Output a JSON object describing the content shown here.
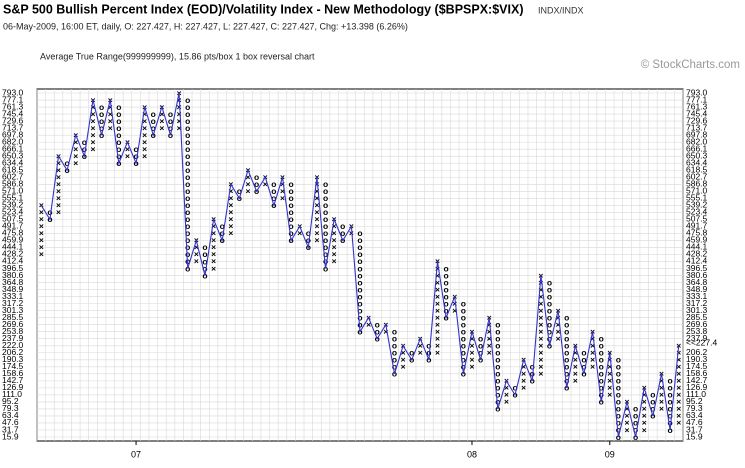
{
  "chart_data": {
    "type": "point_and_figure",
    "title": "S&P 500 Bullish Percent Index (EOD)/Volatility Index - New Methodology ($BPSPX:$VIX)",
    "exchange": "INDX/INDX",
    "subtitle": "06-May-2009, 16:00 ET, daily, O: 227.427, H: 227.427, L: 227.427, C: 227.427, Chg: +13.398 (6.26%)",
    "method": "Average True Range(999999999), 15.86 pts/box 1 box reversal chart",
    "watermark": "© StockCharts.com",
    "ylim": [
      15.9,
      793.0
    ],
    "yticks": [
      15.9,
      31.7,
      47.6,
      63.4,
      79.3,
      95.2,
      {
        "value": 111.0,
        "label": "111.0"
      },
      126.9,
      142.7,
      158.6,
      174.5,
      190.3,
      206.2,
      {
        "value": 222.0,
        "label": "222.0"
      },
      237.9,
      253.8,
      269.6,
      285.5,
      301.3,
      317.2,
      333.1,
      348.9,
      364.8,
      380.6,
      396.5,
      412.4,
      428.2,
      444.1,
      459.9,
      475.8,
      491.7,
      507.5,
      523.4,
      539.2,
      555.1,
      {
        "value": 571.0,
        "label": "571.0"
      },
      586.8,
      602.7,
      618.5,
      634.4,
      650.3,
      666.1,
      {
        "value": 682.0,
        "label": "682.0"
      },
      697.8,
      713.7,
      729.6,
      745.4,
      761.3,
      777.1,
      {
        "value": 793.0,
        "label": "793.0"
      }
    ],
    "grid": true,
    "trend_color": "#3333cc",
    "current": {
      "value": 227.4,
      "label": "<<227.4",
      "color": "#cc0000"
    },
    "x_labels": [
      {
        "label": "07",
        "column": 11
      },
      {
        "label": "08",
        "column": 50
      },
      {
        "label": "09",
        "column": 66
      }
    ],
    "columns": [
      {
        "type": "X",
        "low": 428.2,
        "high": 539.2
      },
      {
        "type": "O",
        "low": 507.5,
        "high": 523.4
      },
      {
        "type": "X",
        "low": 523.4,
        "high": 650.3
      },
      {
        "type": "O",
        "low": 618.5,
        "high": 634.4
      },
      {
        "type": "X",
        "low": 634.4,
        "high": 697.8
      },
      {
        "type": "O",
        "low": 650.3,
        "high": 682.0
      },
      {
        "type": "X",
        "low": 666.1,
        "high": 777.1
      },
      {
        "type": "O",
        "low": 697.8,
        "high": 761.3
      },
      {
        "type": "X",
        "low": 713.7,
        "high": 777.1
      },
      {
        "type": "O",
        "low": 634.4,
        "high": 761.3
      },
      {
        "type": "X",
        "low": 650.3,
        "high": 682.0
      },
      {
        "type": "O",
        "low": 634.4,
        "high": 666.1
      },
      {
        "type": "X",
        "low": 650.3,
        "high": 761.3
      },
      {
        "type": "O",
        "low": 697.8,
        "high": 745.4
      },
      {
        "type": "X",
        "low": 713.7,
        "high": 761.3
      },
      {
        "type": "O",
        "low": 697.8,
        "high": 745.4
      },
      {
        "type": "X",
        "low": 713.7,
        "high": 793.0
      },
      {
        "type": "O",
        "low": 396.5,
        "high": 777.1
      },
      {
        "type": "X",
        "low": 412.4,
        "high": 459.9
      },
      {
        "type": "O",
        "low": 380.6,
        "high": 444.1
      },
      {
        "type": "X",
        "low": 396.5,
        "high": 507.5
      },
      {
        "type": "O",
        "low": 459.9,
        "high": 491.7
      },
      {
        "type": "X",
        "low": 475.8,
        "high": 586.8
      },
      {
        "type": "O",
        "low": 555.1,
        "high": 571.0
      },
      {
        "type": "X",
        "low": 571.0,
        "high": 618.5
      },
      {
        "type": "O",
        "low": 571.0,
        "high": 602.7
      },
      {
        "type": "X",
        "low": 586.8,
        "high": 602.7
      },
      {
        "type": "O",
        "low": 539.2,
        "high": 586.8
      },
      {
        "type": "X",
        "low": 555.1,
        "high": 602.7
      },
      {
        "type": "O",
        "low": 459.9,
        "high": 586.8
      },
      {
        "type": "X",
        "low": 475.8,
        "high": 491.7
      },
      {
        "type": "O",
        "low": 444.1,
        "high": 475.8
      },
      {
        "type": "X",
        "low": 459.9,
        "high": 602.7
      },
      {
        "type": "O",
        "low": 396.5,
        "high": 586.8
      },
      {
        "type": "X",
        "low": 412.4,
        "high": 507.5
      },
      {
        "type": "O",
        "low": 459.9,
        "high": 491.7
      },
      {
        "type": "X",
        "low": 475.8,
        "high": 491.7
      },
      {
        "type": "O",
        "low": 253.8,
        "high": 475.8
      },
      {
        "type": "X",
        "low": 269.6,
        "high": 285.5
      },
      {
        "type": "O",
        "low": 237.9,
        "high": 269.6
      },
      {
        "type": "X",
        "low": 253.8,
        "high": 269.6
      },
      {
        "type": "O",
        "low": 158.6,
        "high": 253.8
      },
      {
        "type": "X",
        "low": 174.5,
        "high": 222.0
      },
      {
        "type": "O",
        "low": 190.3,
        "high": 206.2
      },
      {
        "type": "X",
        "low": 206.2,
        "high": 237.9
      },
      {
        "type": "O",
        "low": 190.3,
        "high": 222.0
      },
      {
        "type": "X",
        "low": 206.2,
        "high": 412.4
      },
      {
        "type": "O",
        "low": 285.5,
        "high": 396.5
      },
      {
        "type": "X",
        "low": 301.3,
        "high": 333.1
      },
      {
        "type": "O",
        "low": 158.6,
        "high": 317.2
      },
      {
        "type": "X",
        "low": 174.5,
        "high": 253.8
      },
      {
        "type": "O",
        "low": 190.3,
        "high": 237.9
      },
      {
        "type": "X",
        "low": 206.2,
        "high": 285.5
      },
      {
        "type": "O",
        "low": 79.3,
        "high": 269.6
      },
      {
        "type": "X",
        "low": 95.2,
        "high": 142.7
      },
      {
        "type": "O",
        "low": 111.0,
        "high": 126.9
      },
      {
        "type": "X",
        "low": 126.9,
        "high": 190.3
      },
      {
        "type": "O",
        "low": 142.7,
        "high": 174.5
      },
      {
        "type": "X",
        "low": 158.6,
        "high": 380.6
      },
      {
        "type": "O",
        "low": 222.0,
        "high": 364.8
      },
      {
        "type": "X",
        "low": 237.9,
        "high": 301.3
      },
      {
        "type": "O",
        "low": 126.9,
        "high": 285.5
      },
      {
        "type": "X",
        "low": 142.7,
        "high": 222.0
      },
      {
        "type": "O",
        "low": 158.6,
        "high": 206.2
      },
      {
        "type": "X",
        "low": 174.5,
        "high": 253.8
      },
      {
        "type": "O",
        "low": 95.2,
        "high": 237.9
      },
      {
        "type": "X",
        "low": 111.0,
        "high": 206.2
      },
      {
        "type": "O",
        "low": 15.9,
        "high": 190.3
      },
      {
        "type": "X",
        "low": 31.7,
        "high": 95.2
      },
      {
        "type": "O",
        "low": 15.9,
        "high": 79.3
      },
      {
        "type": "X",
        "low": 31.7,
        "high": 126.9
      },
      {
        "type": "O",
        "low": 63.4,
        "high": 111.0
      },
      {
        "type": "X",
        "low": 79.3,
        "high": 158.6
      },
      {
        "type": "O",
        "low": 31.7,
        "high": 142.7
      },
      {
        "type": "X",
        "low": 47.6,
        "high": 222.0
      }
    ]
  }
}
